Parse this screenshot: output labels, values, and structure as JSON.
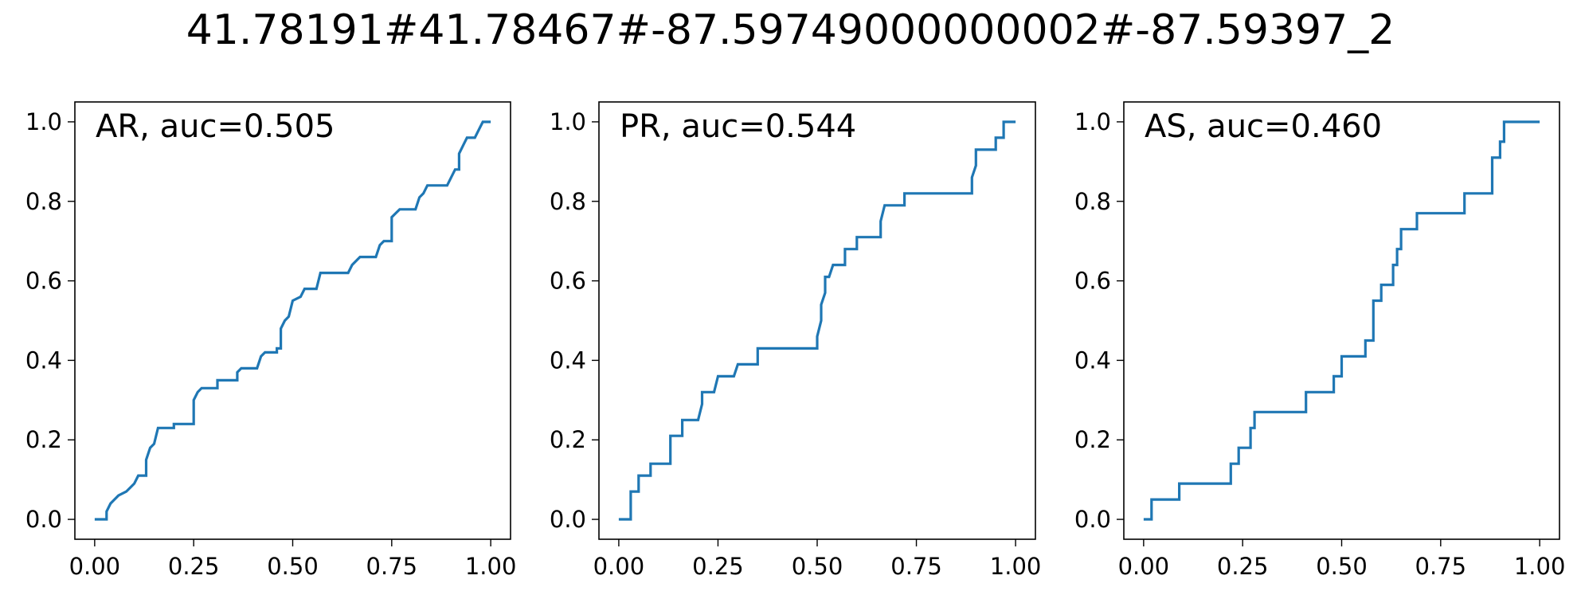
{
  "figure": {
    "title": "41.78191#41.78467#-87.59749000000002#-87.59397_2"
  },
  "colors": {
    "line": "#1f77b4",
    "axes": "#000000",
    "background": "#ffffff"
  },
  "chart_data": [
    {
      "type": "line",
      "step": true,
      "title": "",
      "annotation": "AR, auc=0.505",
      "xlabel": "",
      "ylabel": "",
      "xlim": [
        -0.05,
        1.05
      ],
      "ylim": [
        -0.05,
        1.05
      ],
      "xticks": [
        "0.00",
        "0.25",
        "0.50",
        "0.75",
        "1.00"
      ],
      "yticks": [
        "0.0",
        "0.2",
        "0.4",
        "0.6",
        "0.8",
        "1.0"
      ],
      "grid": false,
      "series": [
        {
          "points": [
            [
              0,
              0
            ],
            [
              0.03,
              0
            ],
            [
              0.03,
              0.02
            ],
            [
              0.04,
              0.04
            ],
            [
              0.05,
              0.05
            ],
            [
              0.06,
              0.06
            ],
            [
              0.08,
              0.07
            ],
            [
              0.09,
              0.08
            ],
            [
              0.1,
              0.09
            ],
            [
              0.11,
              0.11
            ],
            [
              0.13,
              0.11
            ],
            [
              0.13,
              0.15
            ],
            [
              0.14,
              0.18
            ],
            [
              0.15,
              0.19
            ],
            [
              0.16,
              0.23
            ],
            [
              0.2,
              0.23
            ],
            [
              0.2,
              0.24
            ],
            [
              0.25,
              0.24
            ],
            [
              0.25,
              0.3
            ],
            [
              0.26,
              0.32
            ],
            [
              0.27,
              0.33
            ],
            [
              0.31,
              0.33
            ],
            [
              0.31,
              0.35
            ],
            [
              0.36,
              0.35
            ],
            [
              0.36,
              0.37
            ],
            [
              0.37,
              0.38
            ],
            [
              0.41,
              0.38
            ],
            [
              0.42,
              0.41
            ],
            [
              0.43,
              0.42
            ],
            [
              0.46,
              0.42
            ],
            [
              0.46,
              0.43
            ],
            [
              0.47,
              0.43
            ],
            [
              0.47,
              0.48
            ],
            [
              0.48,
              0.5
            ],
            [
              0.49,
              0.51
            ],
            [
              0.5,
              0.55
            ],
            [
              0.52,
              0.56
            ],
            [
              0.53,
              0.58
            ],
            [
              0.56,
              0.58
            ],
            [
              0.57,
              0.62
            ],
            [
              0.64,
              0.62
            ],
            [
              0.65,
              0.64
            ],
            [
              0.67,
              0.66
            ],
            [
              0.71,
              0.66
            ],
            [
              0.72,
              0.69
            ],
            [
              0.73,
              0.7
            ],
            [
              0.75,
              0.7
            ],
            [
              0.75,
              0.76
            ],
            [
              0.76,
              0.77
            ],
            [
              0.77,
              0.78
            ],
            [
              0.81,
              0.78
            ],
            [
              0.82,
              0.81
            ],
            [
              0.83,
              0.82
            ],
            [
              0.84,
              0.84
            ],
            [
              0.89,
              0.84
            ],
            [
              0.9,
              0.86
            ],
            [
              0.91,
              0.88
            ],
            [
              0.92,
              0.88
            ],
            [
              0.92,
              0.92
            ],
            [
              0.93,
              0.94
            ],
            [
              0.94,
              0.96
            ],
            [
              0.96,
              0.96
            ],
            [
              0.97,
              0.98
            ],
            [
              0.98,
              1.0
            ],
            [
              1.0,
              1.0
            ]
          ]
        }
      ]
    },
    {
      "type": "line",
      "step": true,
      "title": "",
      "annotation": "PR, auc=0.544",
      "xlabel": "",
      "ylabel": "",
      "xlim": [
        -0.05,
        1.05
      ],
      "ylim": [
        -0.05,
        1.05
      ],
      "xticks": [
        "0.00",
        "0.25",
        "0.50",
        "0.75",
        "1.00"
      ],
      "yticks": [
        "0.0",
        "0.2",
        "0.4",
        "0.6",
        "0.8",
        "1.0"
      ],
      "grid": false,
      "series": [
        {
          "points": [
            [
              0,
              0
            ],
            [
              0.03,
              0
            ],
            [
              0.03,
              0.07
            ],
            [
              0.05,
              0.07
            ],
            [
              0.05,
              0.11
            ],
            [
              0.08,
              0.11
            ],
            [
              0.08,
              0.14
            ],
            [
              0.13,
              0.14
            ],
            [
              0.13,
              0.21
            ],
            [
              0.16,
              0.21
            ],
            [
              0.16,
              0.25
            ],
            [
              0.2,
              0.25
            ],
            [
              0.21,
              0.29
            ],
            [
              0.21,
              0.32
            ],
            [
              0.24,
              0.32
            ],
            [
              0.25,
              0.36
            ],
            [
              0.29,
              0.36
            ],
            [
              0.3,
              0.39
            ],
            [
              0.35,
              0.39
            ],
            [
              0.35,
              0.43
            ],
            [
              0.5,
              0.43
            ],
            [
              0.5,
              0.46
            ],
            [
              0.51,
              0.5
            ],
            [
              0.51,
              0.54
            ],
            [
              0.52,
              0.57
            ],
            [
              0.52,
              0.61
            ],
            [
              0.53,
              0.61
            ],
            [
              0.54,
              0.64
            ],
            [
              0.57,
              0.64
            ],
            [
              0.57,
              0.68
            ],
            [
              0.6,
              0.68
            ],
            [
              0.6,
              0.71
            ],
            [
              0.66,
              0.71
            ],
            [
              0.66,
              0.75
            ],
            [
              0.67,
              0.79
            ],
            [
              0.72,
              0.79
            ],
            [
              0.72,
              0.82
            ],
            [
              0.89,
              0.82
            ],
            [
              0.89,
              0.86
            ],
            [
              0.9,
              0.89
            ],
            [
              0.9,
              0.93
            ],
            [
              0.95,
              0.93
            ],
            [
              0.95,
              0.96
            ],
            [
              0.97,
              0.96
            ],
            [
              0.97,
              1.0
            ],
            [
              1.0,
              1.0
            ]
          ]
        }
      ]
    },
    {
      "type": "line",
      "step": true,
      "title": "",
      "annotation": "AS, auc=0.460",
      "xlabel": "",
      "ylabel": "",
      "xlim": [
        -0.05,
        1.05
      ],
      "ylim": [
        -0.05,
        1.05
      ],
      "xticks": [
        "0.00",
        "0.25",
        "0.50",
        "0.75",
        "1.00"
      ],
      "yticks": [
        "0.0",
        "0.2",
        "0.4",
        "0.6",
        "0.8",
        "1.0"
      ],
      "grid": false,
      "series": [
        {
          "points": [
            [
              0,
              0
            ],
            [
              0.02,
              0
            ],
            [
              0.02,
              0.05
            ],
            [
              0.09,
              0.05
            ],
            [
              0.09,
              0.09
            ],
            [
              0.22,
              0.09
            ],
            [
              0.22,
              0.14
            ],
            [
              0.24,
              0.14
            ],
            [
              0.24,
              0.18
            ],
            [
              0.27,
              0.18
            ],
            [
              0.27,
              0.23
            ],
            [
              0.28,
              0.23
            ],
            [
              0.28,
              0.27
            ],
            [
              0.41,
              0.27
            ],
            [
              0.41,
              0.32
            ],
            [
              0.48,
              0.32
            ],
            [
              0.48,
              0.36
            ],
            [
              0.5,
              0.36
            ],
            [
              0.5,
              0.41
            ],
            [
              0.56,
              0.41
            ],
            [
              0.56,
              0.45
            ],
            [
              0.58,
              0.45
            ],
            [
              0.58,
              0.55
            ],
            [
              0.6,
              0.55
            ],
            [
              0.6,
              0.59
            ],
            [
              0.63,
              0.59
            ],
            [
              0.63,
              0.64
            ],
            [
              0.64,
              0.64
            ],
            [
              0.64,
              0.68
            ],
            [
              0.65,
              0.68
            ],
            [
              0.65,
              0.73
            ],
            [
              0.69,
              0.73
            ],
            [
              0.69,
              0.77
            ],
            [
              0.81,
              0.77
            ],
            [
              0.81,
              0.82
            ],
            [
              0.88,
              0.82
            ],
            [
              0.88,
              0.86
            ],
            [
              0.88,
              0.91
            ],
            [
              0.9,
              0.91
            ],
            [
              0.9,
              0.95
            ],
            [
              0.91,
              0.95
            ],
            [
              0.91,
              1.0
            ],
            [
              1.0,
              1.0
            ]
          ]
        }
      ]
    }
  ]
}
